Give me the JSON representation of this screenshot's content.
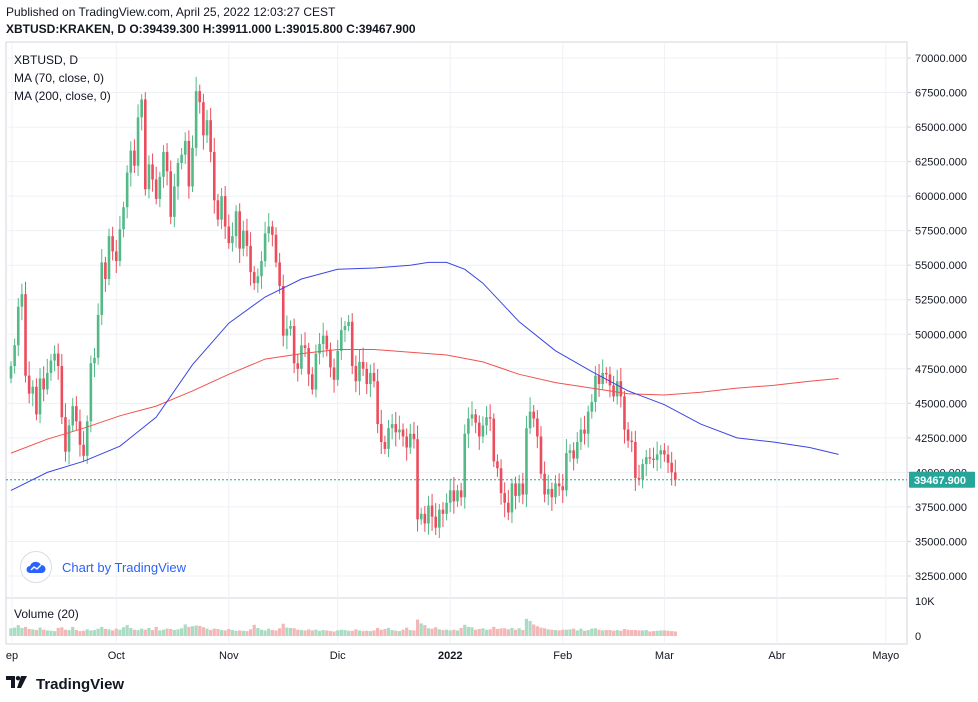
{
  "header": {
    "published": "Published on TradingView.com, April 25, 2022 12:03:27 CEST",
    "ohlc": "XBTUSD:KRAKEN, D  O:39439.300 H:39911.000 L:39015.800 C:39467.900"
  },
  "legend": {
    "symbol": "XBTUSD, D",
    "ma70": "MA (70, close, 0)",
    "ma200": "MA (200, close, 0)",
    "volume": "Volume (20)"
  },
  "watermark": {
    "text": "Chart by TradingView",
    "icon": "tradingview-cloud-icon"
  },
  "footer": {
    "logo_text": "TradingView",
    "icon": "tradingview-logo-icon"
  },
  "colors": {
    "up": "#26a69a",
    "down": "#ef5350",
    "up_body": "#53b987",
    "down_body": "#eb4d5c",
    "ma70": "#3b46e0",
    "ma200": "#ef5350",
    "grid": "#eef0f5",
    "price_line": "#26a69a"
  },
  "chart_data": {
    "type": "candlestick",
    "symbol": "XBTUSD:KRAKEN",
    "interval": "D",
    "ylim": [
      30500,
      71000
    ],
    "y_ticks": [
      70000,
      67500,
      65000,
      62500,
      60000,
      57500,
      55000,
      52500,
      50000,
      47500,
      45000,
      42500,
      40000,
      37500,
      35000,
      32500
    ],
    "y_tick_labels": [
      "70000.000",
      "67500.000",
      "65000.000",
      "62500.000",
      "60000.000",
      "57500.000",
      "55000.000",
      "52500.000",
      "50000.000",
      "47500.000",
      "45000.000",
      "42500.000",
      "40000.000",
      "37500.000",
      "35000.000",
      "32500.000"
    ],
    "x_ticks": [
      {
        "label": "ep",
        "day": 0
      },
      {
        "label": "Oct",
        "day": 29
      },
      {
        "label": "Nov",
        "day": 60
      },
      {
        "label": "Dic",
        "day": 90
      },
      {
        "label": "2022",
        "day": 121
      },
      {
        "label": "Feb",
        "day": 152
      },
      {
        "label": "Mar",
        "day": 180
      },
      {
        "label": "Abr",
        "day": 211
      },
      {
        "label": "Mayo",
        "day": 241
      }
    ],
    "last_price": 39467.9,
    "last_price_label": "39467.900",
    "volume_ticks": [
      {
        "value": 10000,
        "label": "10K"
      },
      {
        "value": 0,
        "label": "0"
      }
    ],
    "closes": [
      47700,
      49200,
      52000,
      52900,
      47000,
      45700,
      46200,
      44200,
      46800,
      46000,
      47200,
      48100,
      48600,
      47700,
      44000,
      41500,
      43400,
      44800,
      43700,
      42000,
      41200,
      43700,
      47900,
      48300,
      51400,
      55200,
      54000,
      57100,
      56000,
      55300,
      57600,
      59200,
      61700,
      63300,
      62200,
      65700,
      67000,
      60500,
      62300,
      61200,
      59800,
      61400,
      63200,
      61800,
      58500,
      60700,
      62400,
      63000,
      64000,
      60700,
      63500,
      67600,
      66800,
      64400,
      65500,
      63200,
      59700,
      58300,
      60000,
      57800,
      56600,
      57100,
      58900,
      56200,
      57500,
      56400,
      54500,
      53700,
      54200,
      55300,
      57300,
      57800,
      57200,
      55200,
      53500,
      49900,
      50400,
      50600,
      47900,
      47500,
      49200,
      49000,
      47100,
      46000,
      48600,
      49300,
      49900,
      48900,
      47600,
      46700,
      48800,
      50300,
      50600,
      50900,
      47700,
      46600,
      48000,
      47500,
      46400,
      47200,
      46600,
      43500,
      42200,
      41700,
      43200,
      43500,
      42900,
      43100,
      42600,
      41800,
      42800,
      42400,
      36600,
      37000,
      36300,
      37600,
      36800,
      36000,
      37300,
      37000,
      37800,
      38700,
      37900,
      38700,
      38200,
      42800,
      43900,
      44200,
      43600,
      42600,
      43400,
      44000,
      43900,
      40800,
      40300,
      38500,
      37800,
      37100,
      39200,
      38300,
      39200,
      38400,
      43200,
      44400,
      43900,
      42600,
      39900,
      38400,
      38800,
      38200,
      39200,
      39000,
      38700,
      41400,
      41600,
      41000,
      42200,
      43100,
      42800,
      44400,
      45100,
      47000,
      46400,
      47200,
      47100,
      46300,
      45500,
      46600,
      45500,
      43100,
      42300,
      42200,
      39600,
      39500,
      40600,
      41100,
      41000,
      40900,
      41300,
      41600,
      41300,
      40700,
      40000,
      39467.9
    ],
    "volumes": [
      2200,
      2400,
      3100,
      2300,
      2600,
      2000,
      1900,
      1700,
      2400,
      1800,
      1600,
      1500,
      1400,
      2300,
      2500,
      1800,
      1700,
      2600,
      1700,
      1400,
      1500,
      1900,
      1600,
      1700,
      2100,
      2600,
      2000,
      1900,
      1600,
      2100,
      1800,
      2500,
      3100,
      2300,
      1800,
      1700,
      2100,
      1800,
      2300,
      1700,
      2600,
      1600,
      1800,
      2100,
      2000,
      1700,
      1900,
      2200,
      3300,
      2600,
      2800,
      3000,
      2900,
      2500,
      2100,
      1700,
      2100,
      2000,
      1700,
      1600,
      2000,
      1700,
      1500,
      1600,
      1500,
      1400,
      1900,
      3200,
      2300,
      1800,
      1600,
      2100,
      1700,
      1600,
      2200,
      3500,
      2400,
      2300,
      2200,
      1800,
      1700,
      1600,
      1900,
      1600,
      1800,
      1500,
      1700,
      1600,
      1400,
      1300,
      1600,
      1800,
      1700,
      1500,
      1500,
      1900,
      1600,
      1400,
      1500,
      1400,
      1600,
      2300,
      1800,
      2000,
      2300,
      1700,
      1500,
      1400,
      1800,
      2400,
      1700,
      1600,
      4700,
      3600,
      3100,
      2200,
      2100,
      2500,
      1900,
      1700,
      1800,
      1600,
      1800,
      1600,
      2300,
      3200,
      2600,
      2500,
      1800,
      2000,
      2200,
      1800,
      1900,
      2600,
      2000,
      2200,
      2200,
      1900,
      2300,
      1800,
      2200,
      1700,
      4900,
      4300,
      3300,
      2800,
      2400,
      2200,
      1900,
      1800,
      1700,
      1600,
      1800,
      1800,
      1900,
      2100,
      1600,
      2100,
      1500,
      1700,
      2100,
      2200,
      1800,
      1600,
      1700,
      1700,
      1500,
      1700,
      1500,
      2000,
      1800,
      1700,
      1700,
      1600,
      1600,
      1700,
      1300,
      1400,
      1500,
      1600,
      1600,
      1500,
      1400,
      1300,
      1200
    ],
    "ma70": [
      {
        "day": 0,
        "value": 38700
      },
      {
        "day": 10,
        "value": 40000
      },
      {
        "day": 20,
        "value": 40800
      },
      {
        "day": 30,
        "value": 41900
      },
      {
        "day": 40,
        "value": 44000
      },
      {
        "day": 50,
        "value": 47800
      },
      {
        "day": 60,
        "value": 50800
      },
      {
        "day": 70,
        "value": 52700
      },
      {
        "day": 80,
        "value": 54000
      },
      {
        "day": 90,
        "value": 54700
      },
      {
        "day": 100,
        "value": 54800
      },
      {
        "day": 110,
        "value": 55000
      },
      {
        "day": 115,
        "value": 55200
      },
      {
        "day": 120,
        "value": 55200
      },
      {
        "day": 125,
        "value": 54700
      },
      {
        "day": 130,
        "value": 53700
      },
      {
        "day": 140,
        "value": 50900
      },
      {
        "day": 150,
        "value": 48800
      },
      {
        "day": 160,
        "value": 47300
      },
      {
        "day": 170,
        "value": 45900
      },
      {
        "day": 180,
        "value": 44900
      },
      {
        "day": 190,
        "value": 43500
      },
      {
        "day": 200,
        "value": 42500
      },
      {
        "day": 210,
        "value": 42200
      },
      {
        "day": 220,
        "value": 41800
      },
      {
        "day": 228,
        "value": 41300
      }
    ],
    "ma200": [
      {
        "day": 0,
        "value": 41400
      },
      {
        "day": 10,
        "value": 42400
      },
      {
        "day": 20,
        "value": 43200
      },
      {
        "day": 30,
        "value": 44100
      },
      {
        "day": 40,
        "value": 44800
      },
      {
        "day": 50,
        "value": 45900
      },
      {
        "day": 60,
        "value": 47100
      },
      {
        "day": 70,
        "value": 48200
      },
      {
        "day": 80,
        "value": 48600
      },
      {
        "day": 90,
        "value": 48900
      },
      {
        "day": 100,
        "value": 48900
      },
      {
        "day": 110,
        "value": 48700
      },
      {
        "day": 120,
        "value": 48500
      },
      {
        "day": 130,
        "value": 48000
      },
      {
        "day": 140,
        "value": 47100
      },
      {
        "day": 150,
        "value": 46500
      },
      {
        "day": 160,
        "value": 46100
      },
      {
        "day": 170,
        "value": 45700
      },
      {
        "day": 180,
        "value": 45600
      },
      {
        "day": 190,
        "value": 45800
      },
      {
        "day": 200,
        "value": 46100
      },
      {
        "day": 210,
        "value": 46300
      },
      {
        "day": 220,
        "value": 46600
      },
      {
        "day": 228,
        "value": 46800
      }
    ]
  }
}
